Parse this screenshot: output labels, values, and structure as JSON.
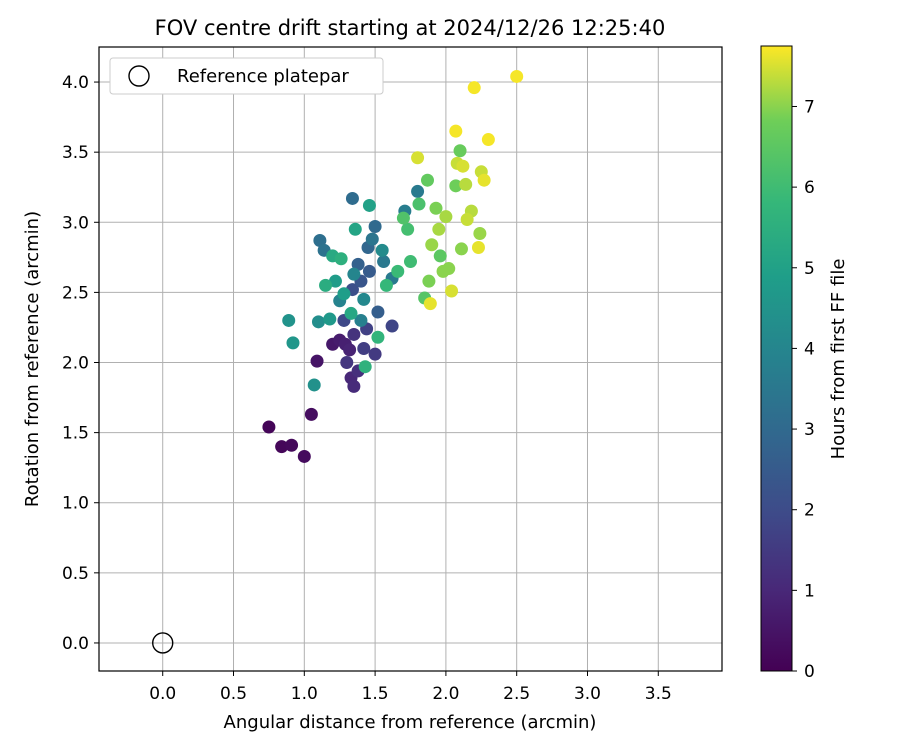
{
  "chart_data": {
    "type": "scatter",
    "title": "FOV centre drift starting at 2024/12/26 12:25:40",
    "xlabel": "Angular distance from reference (arcmin)",
    "ylabel": "Rotation from reference (arcmin)",
    "xlim": [
      -0.45,
      3.95
    ],
    "ylim": [
      -0.2,
      4.25
    ],
    "xticks": [
      "0.0",
      "0.5",
      "1.0",
      "1.5",
      "2.0",
      "2.5",
      "3.0",
      "3.5"
    ],
    "yticks": [
      "0.0",
      "0.5",
      "1.0",
      "1.5",
      "2.0",
      "2.5",
      "3.0",
      "3.5",
      "4.0"
    ],
    "grid": true,
    "legend": {
      "placement": "top-left",
      "entries": [
        "Reference platepar"
      ]
    },
    "reference_point": {
      "x": 0.0,
      "y": 0.0,
      "label": "Reference platepar",
      "marker": "open-circle"
    },
    "colorbar": {
      "label": "Hours from first FF file",
      "colormap": "viridis",
      "range": [
        0,
        7.75
      ],
      "ticks": [
        "0",
        "1",
        "2",
        "3",
        "4",
        "5",
        "6",
        "7"
      ]
    },
    "series": [
      {
        "points": [
          [
            0.75,
            1.54,
            0.1
          ],
          [
            0.84,
            1.4,
            0.15
          ],
          [
            0.91,
            1.41,
            0.2
          ],
          [
            1.0,
            1.33,
            0.25
          ],
          [
            1.05,
            1.63,
            0.3
          ],
          [
            1.09,
            2.01,
            0.5
          ],
          [
            1.2,
            2.13,
            0.6
          ],
          [
            1.25,
            2.16,
            0.7
          ],
          [
            1.29,
            2.13,
            0.8
          ],
          [
            1.32,
            2.09,
            0.9
          ],
          [
            1.33,
            1.89,
            1.0
          ],
          [
            1.35,
            1.83,
            1.1
          ],
          [
            1.38,
            1.94,
            1.2
          ],
          [
            1.35,
            2.2,
            1.3
          ],
          [
            1.3,
            2.0,
            1.4
          ],
          [
            1.5,
            2.06,
            1.5
          ],
          [
            1.42,
            2.1,
            1.6
          ],
          [
            1.44,
            2.24,
            1.7
          ],
          [
            1.62,
            2.26,
            1.8
          ],
          [
            1.28,
            2.3,
            1.9
          ],
          [
            1.34,
            2.52,
            2.1
          ],
          [
            1.4,
            2.58,
            2.3
          ],
          [
            1.46,
            2.65,
            2.5
          ],
          [
            1.52,
            2.36,
            2.6
          ],
          [
            1.38,
            2.7,
            2.7
          ],
          [
            1.45,
            2.82,
            2.9
          ],
          [
            1.5,
            2.97,
            3.0
          ],
          [
            1.34,
            3.17,
            3.1
          ],
          [
            1.11,
            2.87,
            3.2
          ],
          [
            1.14,
            2.8,
            3.3
          ],
          [
            1.48,
            2.88,
            3.4
          ],
          [
            1.56,
            2.72,
            3.5
          ],
          [
            1.62,
            2.6,
            3.6
          ],
          [
            1.8,
            3.22,
            3.6
          ],
          [
            1.71,
            3.08,
            3.7
          ],
          [
            1.4,
            2.3,
            3.8
          ],
          [
            1.25,
            2.44,
            3.9
          ],
          [
            1.35,
            2.63,
            4.0
          ],
          [
            1.42,
            2.45,
            4.1
          ],
          [
            1.55,
            2.8,
            4.2
          ],
          [
            1.1,
            2.29,
            4.3
          ],
          [
            1.07,
            1.84,
            4.4
          ],
          [
            0.89,
            2.3,
            4.5
          ],
          [
            0.92,
            2.14,
            4.6
          ],
          [
            1.18,
            2.31,
            4.7
          ],
          [
            1.22,
            2.58,
            4.8
          ],
          [
            1.28,
            2.49,
            4.9
          ],
          [
            1.46,
            3.12,
            5.0
          ],
          [
            1.36,
            2.95,
            5.1
          ],
          [
            1.33,
            2.35,
            5.2
          ],
          [
            1.2,
            2.76,
            5.3
          ],
          [
            1.15,
            2.55,
            5.4
          ],
          [
            1.26,
            2.74,
            5.5
          ],
          [
            1.43,
            1.97,
            5.6
          ],
          [
            1.52,
            2.18,
            5.7
          ],
          [
            1.58,
            2.55,
            5.8
          ],
          [
            1.66,
            2.65,
            5.9
          ],
          [
            1.75,
            2.72,
            6.0
          ],
          [
            1.73,
            2.95,
            6.1
          ],
          [
            1.81,
            3.13,
            6.2
          ],
          [
            1.7,
            3.03,
            6.3
          ],
          [
            1.85,
            2.46,
            6.4
          ],
          [
            1.96,
            2.76,
            6.5
          ],
          [
            1.87,
            3.3,
            6.6
          ],
          [
            2.1,
            3.51,
            6.7
          ],
          [
            2.07,
            3.26,
            6.8
          ],
          [
            1.93,
            3.1,
            6.9
          ],
          [
            2.11,
            2.81,
            7.0
          ],
          [
            2.02,
            2.67,
            7.0
          ],
          [
            2.24,
            2.92,
            7.1
          ],
          [
            2.0,
            3.04,
            7.2
          ],
          [
            2.18,
            3.08,
            7.3
          ],
          [
            2.14,
            3.27,
            7.3
          ],
          [
            2.25,
            3.36,
            7.4
          ],
          [
            2.08,
            3.42,
            7.4
          ],
          [
            2.12,
            3.4,
            7.5
          ],
          [
            2.04,
            2.51,
            7.5
          ],
          [
            1.8,
            3.46,
            7.5
          ],
          [
            1.89,
            2.42,
            7.6
          ],
          [
            2.23,
            2.82,
            7.6
          ],
          [
            2.27,
            3.3,
            7.6
          ],
          [
            2.07,
            3.65,
            7.7
          ],
          [
            2.3,
            3.59,
            7.7
          ],
          [
            2.2,
            3.96,
            7.7
          ],
          [
            2.5,
            4.04,
            7.7
          ],
          [
            1.95,
            2.95,
            7.2
          ],
          [
            2.15,
            3.02,
            7.4
          ],
          [
            1.9,
            2.84,
            7.1
          ],
          [
            1.88,
            2.58,
            6.9
          ],
          [
            1.98,
            2.65,
            7.0
          ]
        ]
      }
    ]
  }
}
